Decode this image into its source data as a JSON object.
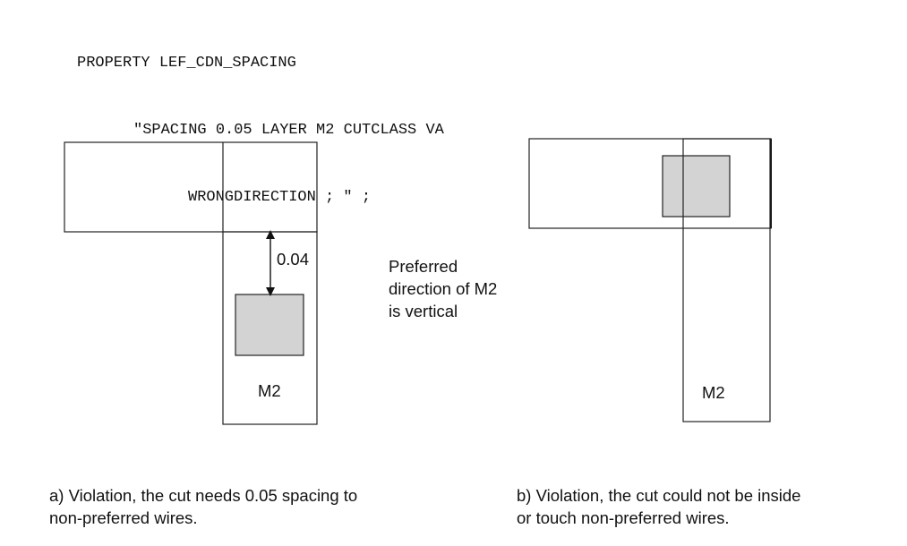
{
  "code": {
    "lines": [
      "PROPERTY LEF_CDN_SPACING",
      "\"SPACING 0.05 LAYER M2 CUTCLASS VA",
      "WRONGDIRECTION ; \" ;"
    ]
  },
  "diagram_a": {
    "dimension_label": "0.04",
    "layer_label": "M2",
    "caption_lines": [
      "a) Violation, the cut needs 0.05 spacing to",
      "non-preferred wires."
    ]
  },
  "note": {
    "lines": [
      "Preferred",
      "direction of M2",
      "is vertical"
    ]
  },
  "diagram_b": {
    "layer_label": "M2",
    "caption_lines": [
      "b) Violation, the cut could not be inside",
      "or touch non-preferred wires."
    ]
  },
  "colors": {
    "outline": "#222222",
    "cut_fill": "#d3d3d3"
  }
}
